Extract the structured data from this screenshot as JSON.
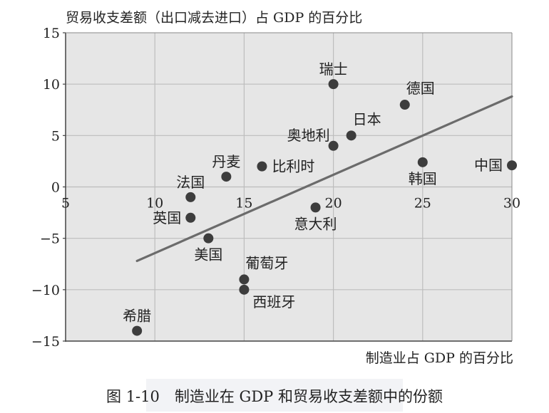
{
  "chart_data": {
    "type": "scatter",
    "title": "",
    "ylabel": "贸易收支差额（出口减去进口）占 GDP 的百分比",
    "xlabel": "制造业占 GDP 的百分比",
    "xlim": [
      5,
      30
    ],
    "ylim": [
      -15,
      15
    ],
    "x_ticks": [
      {
        "value": 5,
        "label": "5"
      },
      {
        "value": 10,
        "label": "10"
      },
      {
        "value": 15,
        "label": "15"
      },
      {
        "value": 20,
        "label": "20"
      },
      {
        "value": 25,
        "label": "25"
      },
      {
        "value": 30,
        "label": "30"
      }
    ],
    "y_ticks": [
      {
        "value": 15,
        "label": "15"
      },
      {
        "value": 10,
        "label": "10"
      },
      {
        "value": 5,
        "label": "5"
      },
      {
        "value": 0,
        "label": "0"
      },
      {
        "value": -5,
        "label": "−5"
      },
      {
        "value": -10,
        "label": "−10"
      },
      {
        "value": -15,
        "label": "−15"
      }
    ],
    "grid": true,
    "points": [
      {
        "label": "瑞士",
        "x": 20,
        "y": 10,
        "anchor": "above"
      },
      {
        "label": "德国",
        "x": 24,
        "y": 8,
        "anchor": "above-right"
      },
      {
        "label": "日本",
        "x": 21,
        "y": 5,
        "anchor": "above-right"
      },
      {
        "label": "奥地利",
        "x": 20,
        "y": 4,
        "anchor": "above-left"
      },
      {
        "label": "比利时",
        "x": 16,
        "y": 2,
        "anchor": "right"
      },
      {
        "label": "丹麦",
        "x": 14,
        "y": 1,
        "anchor": "above"
      },
      {
        "label": "韩国",
        "x": 25,
        "y": 2.4,
        "anchor": "below"
      },
      {
        "label": "中国",
        "x": 30,
        "y": 2.1,
        "anchor": "left"
      },
      {
        "label": "法国",
        "x": 12,
        "y": -1,
        "anchor": "above"
      },
      {
        "label": "英国",
        "x": 12,
        "y": -3,
        "anchor": "left"
      },
      {
        "label": "美国",
        "x": 13,
        "y": -5,
        "anchor": "below"
      },
      {
        "label": "意大利",
        "x": 19,
        "y": -2,
        "anchor": "below"
      },
      {
        "label": "葡萄牙",
        "x": 15,
        "y": -9,
        "anchor": "above-right"
      },
      {
        "label": "西班牙",
        "x": 15,
        "y": -10,
        "anchor": "below-right"
      },
      {
        "label": "希腊",
        "x": 9,
        "y": -14,
        "anchor": "above"
      }
    ],
    "trendline": {
      "x1": 9,
      "y1": -7.2,
      "x2": 30,
      "y2": 8.8
    },
    "colors": {
      "plot_bg": "#e6e6e6",
      "grid": "#bdbdbd",
      "point": "#3d3d3d",
      "trend": "#6b6b6b"
    }
  },
  "caption": "图 1-10　制造业在 GDP 和贸易收支差额中的份额"
}
